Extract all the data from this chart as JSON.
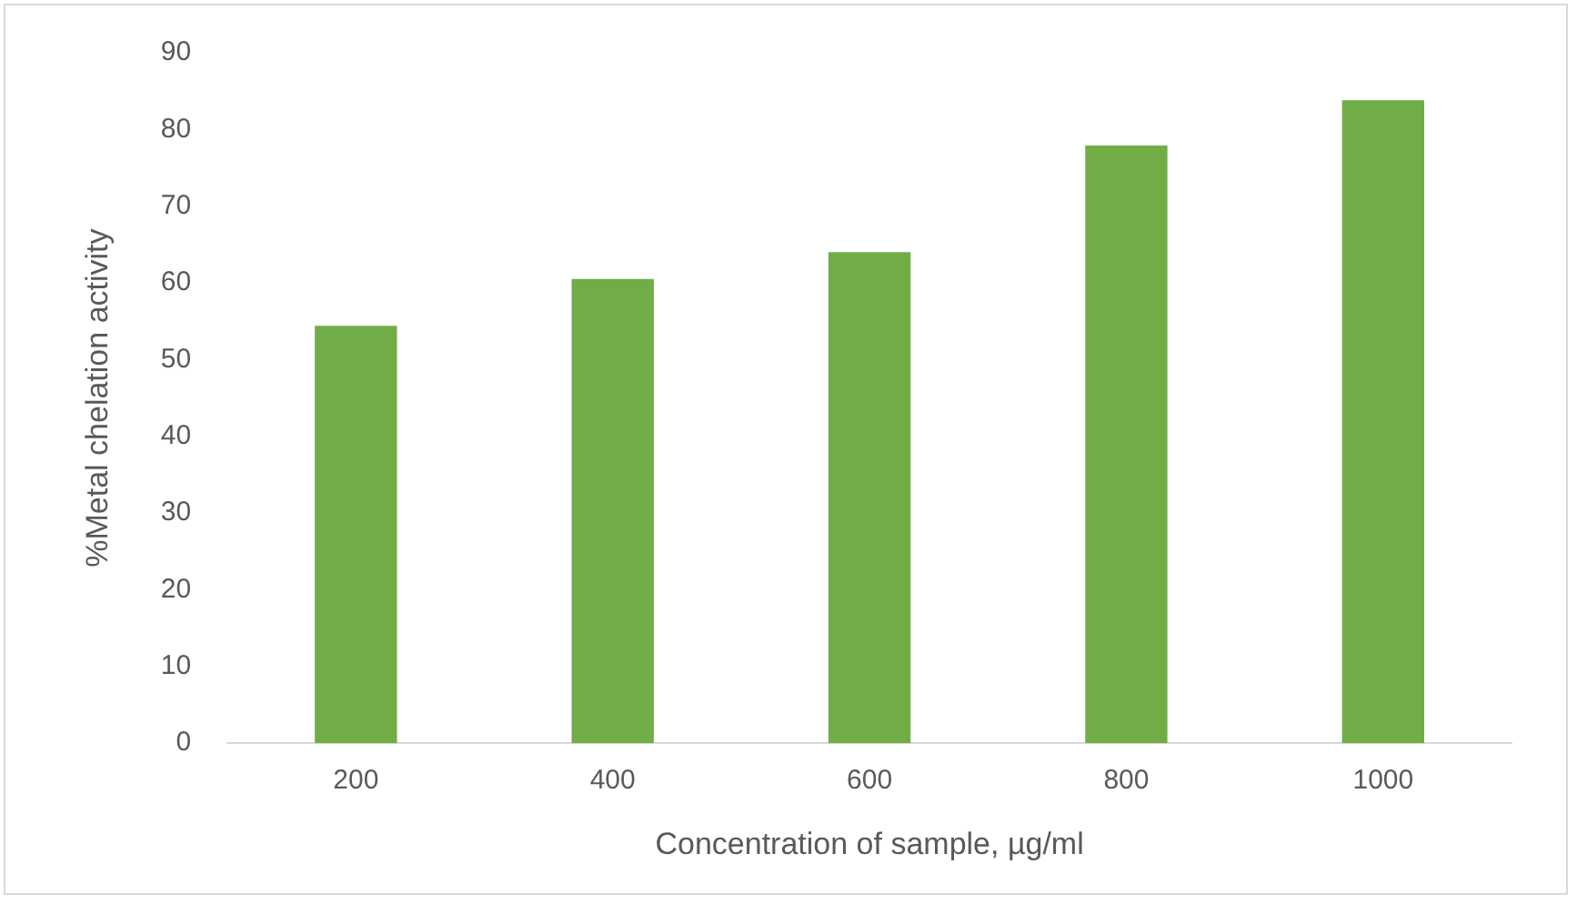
{
  "chart_data": {
    "type": "bar",
    "xlabel": "Concentration of sample, µg/ml",
    "ylabel": "%Metal chelation activity",
    "categories": [
      "200",
      "400",
      "600",
      "800",
      "1000"
    ],
    "values": [
      54.4,
      60.5,
      64,
      77.9,
      83.8
    ],
    "color": "#70ad47",
    "ylim": [
      0,
      90
    ],
    "yticks": [
      0,
      10,
      20,
      30,
      40,
      50,
      60,
      70,
      80,
      90
    ],
    "grid": false,
    "legend": false
  }
}
